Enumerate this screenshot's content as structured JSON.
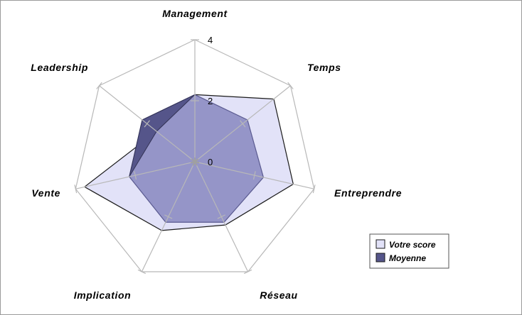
{
  "chart_data": {
    "type": "radar",
    "categories": [
      "Management",
      "Temps",
      "Entreprendre",
      "Réseau",
      "Implication",
      "Vente",
      "Leadership"
    ],
    "rmax": 4,
    "ticks": [
      {
        "value": 0,
        "label": "0"
      },
      {
        "value": 2,
        "label": "2"
      },
      {
        "value": 4,
        "label": "4"
      }
    ],
    "series": [
      {
        "name": "Votre score",
        "values": [
          2.2,
          3.3,
          3.3,
          2.3,
          2.5,
          3.7,
          1.6
        ],
        "color": "#e2e2f8",
        "stroke": "#1a1a1a"
      },
      {
        "name": "Moyenne",
        "values": [
          2.2,
          2.2,
          2.3,
          2.2,
          2.2,
          2.2,
          2.2
        ],
        "color": "#9595c8",
        "stroke": "#5a5a90"
      }
    ],
    "legend_position": "bottom-right",
    "grid": true,
    "colors": {
      "grid": "#b8b8b8",
      "moyenne_dark": "#55558a",
      "border": "#9a9a9a"
    }
  }
}
